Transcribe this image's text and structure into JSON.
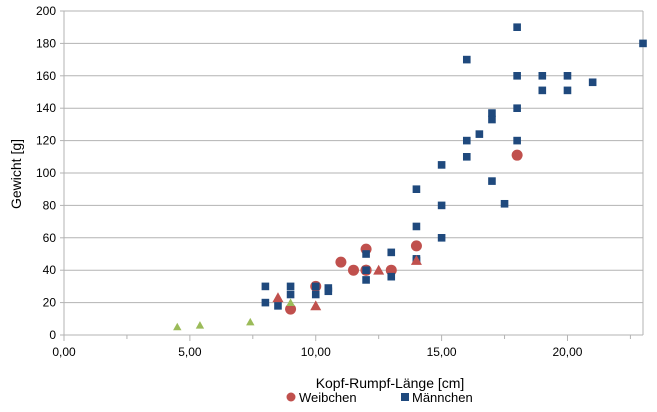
{
  "chart_data": {
    "type": "scatter",
    "xlabel": "Kopf-Rumpf-Länge [cm]",
    "ylabel": "Gewicht  [g]",
    "xlim": [
      0,
      23
    ],
    "ylim": [
      0,
      200
    ],
    "x_ticks": [
      0,
      5,
      10,
      15,
      20
    ],
    "x_tick_labels": [
      "0,00",
      "5,00",
      "10,00",
      "15,00",
      "20,00"
    ],
    "y_ticks": [
      0,
      20,
      40,
      60,
      80,
      100,
      120,
      140,
      160,
      180,
      200
    ],
    "y_tick_labels": [
      "0",
      "20",
      "40",
      "60",
      "80",
      "100",
      "120",
      "140",
      "160",
      "180",
      "200"
    ],
    "grid": "horizontal",
    "legend_position": "bottom",
    "series": [
      {
        "name": "Weibchen",
        "marker": "circle",
        "color": "#c0504d",
        "points": [
          [
            9,
            16
          ],
          [
            10,
            30
          ],
          [
            11,
            45
          ],
          [
            11.5,
            40
          ],
          [
            12,
            40
          ],
          [
            12,
            53
          ],
          [
            12,
            40
          ],
          [
            13,
            40
          ],
          [
            14,
            55
          ],
          [
            18,
            111
          ]
        ]
      },
      {
        "name": "Männchen",
        "marker": "square",
        "color": "#1f497d",
        "points": [
          [
            8,
            30
          ],
          [
            8,
            20
          ],
          [
            8.5,
            18
          ],
          [
            9,
            30
          ],
          [
            9,
            25
          ],
          [
            10,
            30
          ],
          [
            10,
            25
          ],
          [
            10.5,
            29
          ],
          [
            10.5,
            27
          ],
          [
            12,
            50
          ],
          [
            12,
            40
          ],
          [
            12,
            34
          ],
          [
            13,
            51
          ],
          [
            13,
            36
          ],
          [
            14,
            90
          ],
          [
            14,
            67
          ],
          [
            14,
            47
          ],
          [
            14,
            46
          ],
          [
            15,
            105
          ],
          [
            15,
            80
          ],
          [
            15,
            60
          ],
          [
            16,
            170
          ],
          [
            16,
            120
          ],
          [
            16,
            110
          ],
          [
            16.5,
            124
          ],
          [
            17,
            137
          ],
          [
            17,
            133
          ],
          [
            17,
            95
          ],
          [
            17.5,
            81
          ],
          [
            18,
            190
          ],
          [
            18,
            160
          ],
          [
            18,
            140
          ],
          [
            18,
            120
          ],
          [
            19,
            160
          ],
          [
            19,
            151
          ],
          [
            20,
            160
          ],
          [
            20,
            151
          ],
          [
            21,
            156
          ],
          [
            23,
            180
          ]
        ]
      },
      {
        "name": "",
        "marker": "triangle",
        "color": "#c0504d",
        "points": [
          [
            8.5,
            23
          ],
          [
            10,
            18
          ],
          [
            12.5,
            40
          ],
          [
            14,
            46
          ]
        ]
      },
      {
        "name": "",
        "marker": "triangle",
        "color": "#9bbb59",
        "points": [
          [
            4.5,
            5
          ],
          [
            5.4,
            6
          ],
          [
            7.4,
            8
          ],
          [
            9,
            20
          ]
        ]
      }
    ]
  }
}
